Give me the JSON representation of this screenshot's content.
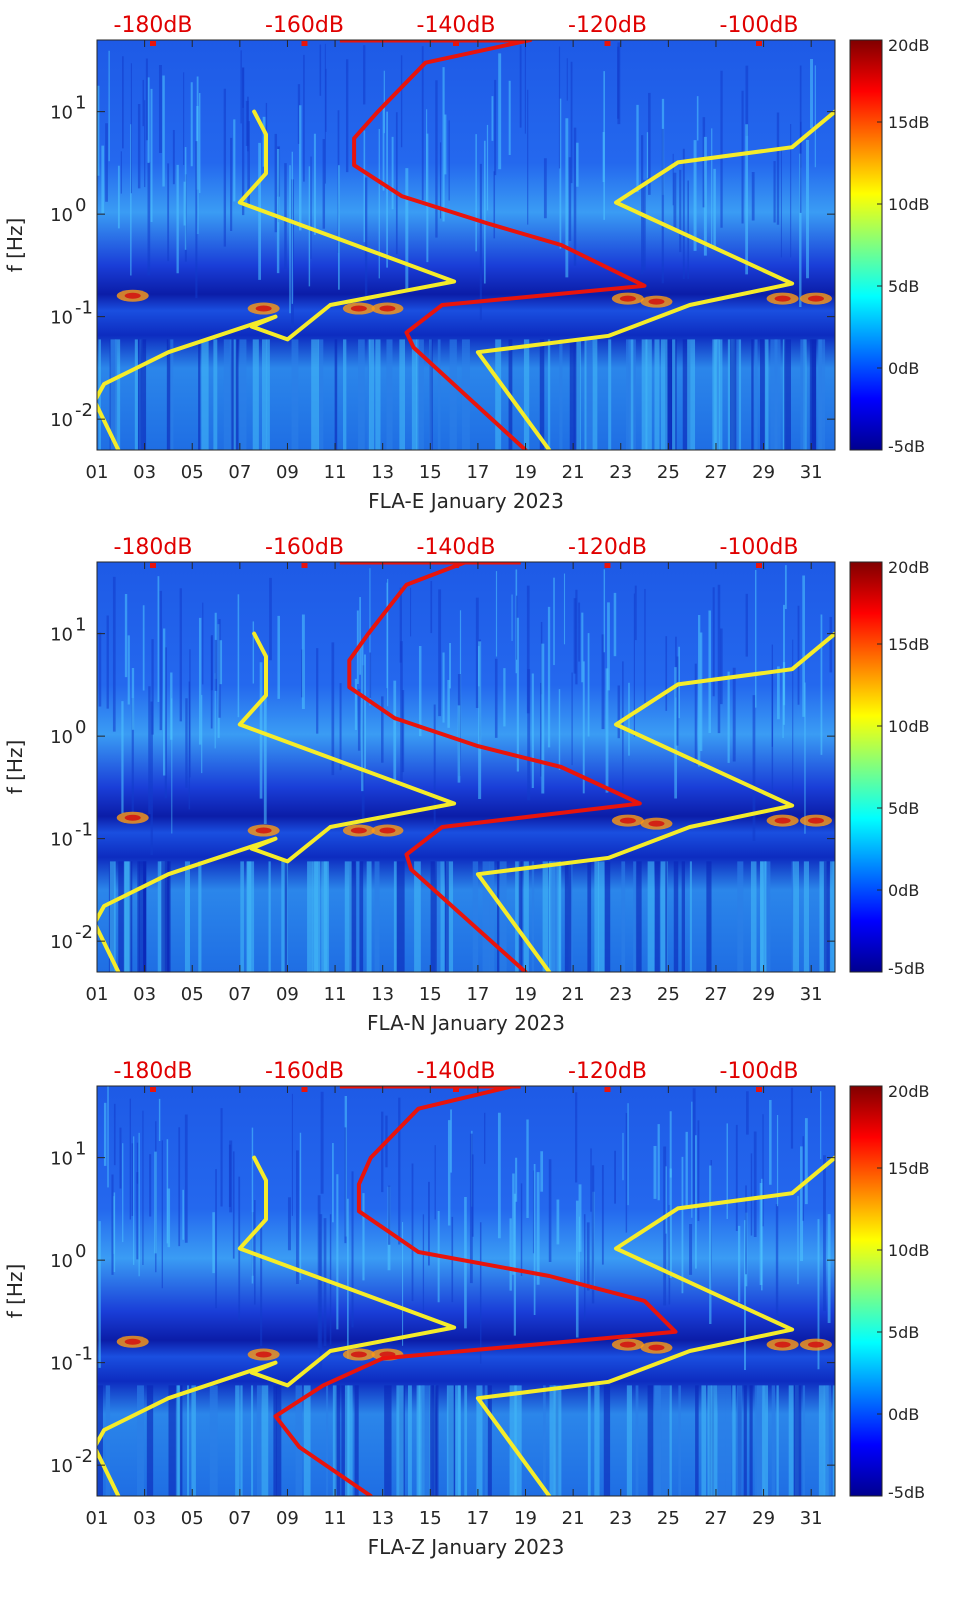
{
  "chart_data": [
    {
      "type": "heatmap",
      "station": "FLA-E",
      "xlabel": "FLA-E January 2023",
      "ylabel": "f [Hz]",
      "xlim": [
        1,
        32
      ],
      "ylim": [
        0.005,
        50
      ],
      "yscale": "log",
      "x_ticks": [
        "01",
        "03",
        "05",
        "07",
        "09",
        "11",
        "13",
        "15",
        "17",
        "19",
        "21",
        "23",
        "25",
        "27",
        "29",
        "31"
      ],
      "y_ticks": [
        {
          "label": "10",
          "exp": "-2",
          "value": 0.01
        },
        {
          "label": "10",
          "exp": "-1",
          "value": 0.1
        },
        {
          "label": "10",
          "exp": "0",
          "value": 1
        },
        {
          "label": "10",
          "exp": "1",
          "value": 10
        }
      ],
      "top_axis_labels": [
        "-180dB",
        "-160dB",
        "-140dB",
        "-120dB",
        "-100dB"
      ],
      "colorbar": {
        "labels": [
          "20dB",
          "15dB",
          "10dB",
          "5dB",
          "0dB",
          "-5dB"
        ],
        "range": [
          -5,
          20
        ]
      },
      "series": [
        {
          "name": "yellow-low-model",
          "color": "#f5ec2a",
          "points": [
            [
              7.6,
              10
            ],
            [
              8.1,
              6
            ],
            [
              8.1,
              2.5
            ],
            [
              7.0,
              1.3
            ],
            [
              16.0,
              0.22
            ],
            [
              10.8,
              0.13
            ],
            [
              9.0,
              0.06
            ],
            [
              7.5,
              0.08
            ],
            [
              8.5,
              0.1
            ],
            [
              4.0,
              0.045
            ],
            [
              1.3,
              0.022
            ],
            [
              0.9,
              0.015
            ],
            [
              1.9,
              0.005
            ]
          ]
        },
        {
          "name": "yellow-high-model",
          "color": "#f5ec2a",
          "points": [
            [
              32,
              10
            ],
            [
              30.2,
              4.5
            ],
            [
              25.4,
              3.2
            ],
            [
              22.8,
              1.3
            ],
            [
              30.2,
              0.21
            ],
            [
              25.9,
              0.13
            ],
            [
              22.5,
              0.065
            ],
            [
              17.0,
              0.045
            ],
            [
              20.0,
              0.005
            ]
          ]
        },
        {
          "name": "red-noise-model",
          "color": "#e8140c",
          "points": [
            [
              19.2,
              50
            ],
            [
              14.8,
              30
            ],
            [
              12.8,
              10
            ],
            [
              11.8,
              5.5
            ],
            [
              11.8,
              3
            ],
            [
              13.8,
              1.5
            ],
            [
              17.5,
              0.8
            ],
            [
              20.5,
              0.5
            ],
            [
              24,
              0.2
            ],
            [
              15.5,
              0.13
            ],
            [
              14.0,
              0.07
            ],
            [
              14.3,
              0.05
            ],
            [
              19.0,
              0.005
            ]
          ]
        }
      ]
    },
    {
      "type": "heatmap",
      "station": "FLA-N",
      "xlabel": "FLA-N January 2023",
      "ylabel": "f [Hz]",
      "xlim": [
        1,
        32
      ],
      "ylim": [
        0.005,
        50
      ],
      "yscale": "log",
      "x_ticks": [
        "01",
        "03",
        "05",
        "07",
        "09",
        "11",
        "13",
        "15",
        "17",
        "19",
        "21",
        "23",
        "25",
        "27",
        "29",
        "31"
      ],
      "y_ticks": [
        {
          "label": "10",
          "exp": "-2",
          "value": 0.01
        },
        {
          "label": "10",
          "exp": "-1",
          "value": 0.1
        },
        {
          "label": "10",
          "exp": "0",
          "value": 1
        },
        {
          "label": "10",
          "exp": "1",
          "value": 10
        }
      ],
      "top_axis_labels": [
        "-180dB",
        "-160dB",
        "-140dB",
        "-120dB",
        "-100dB"
      ],
      "colorbar": {
        "labels": [
          "20dB",
          "15dB",
          "10dB",
          "5dB",
          "0dB",
          "-5dB"
        ],
        "range": [
          -5,
          20
        ]
      },
      "series": [
        {
          "name": "yellow-low-model",
          "color": "#f5ec2a",
          "points": [
            [
              7.6,
              10
            ],
            [
              8.1,
              6
            ],
            [
              8.1,
              2.5
            ],
            [
              7.0,
              1.3
            ],
            [
              16.0,
              0.22
            ],
            [
              10.8,
              0.13
            ],
            [
              9.0,
              0.06
            ],
            [
              7.5,
              0.08
            ],
            [
              8.5,
              0.1
            ],
            [
              4.0,
              0.045
            ],
            [
              1.3,
              0.022
            ],
            [
              0.9,
              0.015
            ],
            [
              1.9,
              0.005
            ]
          ]
        },
        {
          "name": "yellow-high-model",
          "color": "#f5ec2a",
          "points": [
            [
              32,
              10
            ],
            [
              30.2,
              4.5
            ],
            [
              25.4,
              3.2
            ],
            [
              22.8,
              1.3
            ],
            [
              30.2,
              0.21
            ],
            [
              25.9,
              0.13
            ],
            [
              22.5,
              0.065
            ],
            [
              17.0,
              0.045
            ],
            [
              20.0,
              0.005
            ]
          ]
        },
        {
          "name": "red-noise-model",
          "color": "#e8140c",
          "points": [
            [
              16.5,
              50
            ],
            [
              14.0,
              30
            ],
            [
              12.4,
              10
            ],
            [
              11.6,
              5.5
            ],
            [
              11.6,
              3
            ],
            [
              13.5,
              1.5
            ],
            [
              17.0,
              0.8
            ],
            [
              20.5,
              0.5
            ],
            [
              23.8,
              0.22
            ],
            [
              15.5,
              0.13
            ],
            [
              14.0,
              0.07
            ],
            [
              14.2,
              0.05
            ],
            [
              19.0,
              0.005
            ]
          ]
        }
      ]
    },
    {
      "type": "heatmap",
      "station": "FLA-Z",
      "xlabel": "FLA-Z January 2023",
      "ylabel": "f [Hz]",
      "xlim": [
        1,
        32
      ],
      "ylim": [
        0.005,
        50
      ],
      "yscale": "log",
      "x_ticks": [
        "01",
        "03",
        "05",
        "07",
        "09",
        "11",
        "13",
        "15",
        "17",
        "19",
        "21",
        "23",
        "25",
        "27",
        "29",
        "31"
      ],
      "y_ticks": [
        {
          "label": "10",
          "exp": "-2",
          "value": 0.01
        },
        {
          "label": "10",
          "exp": "-1",
          "value": 0.1
        },
        {
          "label": "10",
          "exp": "0",
          "value": 1
        },
        {
          "label": "10",
          "exp": "1",
          "value": 10
        }
      ],
      "top_axis_labels": [
        "-180dB",
        "-160dB",
        "-140dB",
        "-120dB",
        "-100dB"
      ],
      "colorbar": {
        "labels": [
          "20dB",
          "15dB",
          "10dB",
          "5dB",
          "0dB",
          "-5dB"
        ],
        "range": [
          -5,
          20
        ]
      },
      "series": [
        {
          "name": "yellow-low-model",
          "color": "#f5ec2a",
          "points": [
            [
              7.6,
              10
            ],
            [
              8.1,
              6
            ],
            [
              8.1,
              2.5
            ],
            [
              7.0,
              1.3
            ],
            [
              16.0,
              0.22
            ],
            [
              10.8,
              0.13
            ],
            [
              9.0,
              0.06
            ],
            [
              7.5,
              0.08
            ],
            [
              8.5,
              0.1
            ],
            [
              4.0,
              0.045
            ],
            [
              1.3,
              0.022
            ],
            [
              0.9,
              0.015
            ],
            [
              1.9,
              0.005
            ]
          ]
        },
        {
          "name": "yellow-high-model",
          "color": "#f5ec2a",
          "points": [
            [
              32,
              10
            ],
            [
              30.2,
              4.5
            ],
            [
              25.4,
              3.2
            ],
            [
              22.8,
              1.3
            ],
            [
              30.2,
              0.21
            ],
            [
              25.9,
              0.13
            ],
            [
              22.5,
              0.065
            ],
            [
              17.0,
              0.045
            ],
            [
              20.0,
              0.005
            ]
          ]
        },
        {
          "name": "red-noise-model",
          "color": "#e8140c",
          "points": [
            [
              18.5,
              50
            ],
            [
              14.5,
              30
            ],
            [
              12.5,
              10
            ],
            [
              12.0,
              5.5
            ],
            [
              12.0,
              3
            ],
            [
              14.5,
              1.2
            ],
            [
              20.0,
              0.7
            ],
            [
              24.0,
              0.4
            ],
            [
              25.3,
              0.2
            ],
            [
              13.0,
              0.11
            ],
            [
              10.5,
              0.06
            ],
            [
              8.5,
              0.03
            ],
            [
              9.5,
              0.015
            ],
            [
              12.5,
              0.005
            ]
          ]
        }
      ]
    }
  ]
}
